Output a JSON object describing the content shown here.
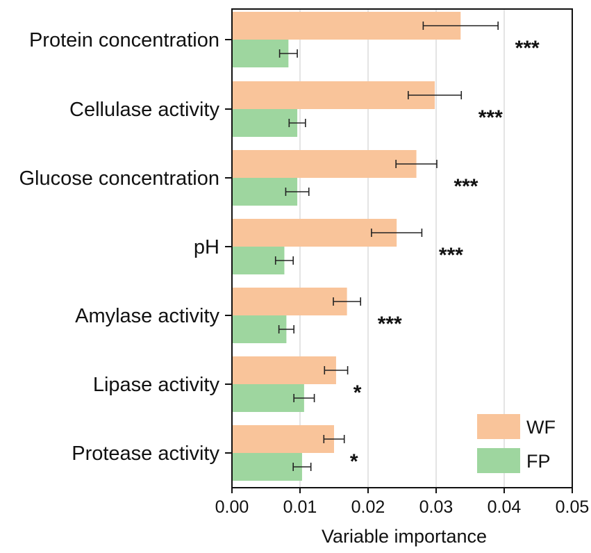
{
  "chart_data": {
    "type": "bar",
    "orientation": "horizontal",
    "title": "",
    "xlabel": "Variable importance",
    "ylabel": "",
    "xlim": [
      0,
      0.05
    ],
    "x_ticks": [
      "0.00",
      "0.01",
      "0.02",
      "0.03",
      "0.04",
      "0.05"
    ],
    "grid": true,
    "legend_position": "bottom-right",
    "categories": [
      "Protein concentration",
      "Cellulase activity",
      "Glucose concentration",
      "pH",
      "Amylase activity",
      "Lipase activity",
      "Protease activity"
    ],
    "series": [
      {
        "name": "WF",
        "color": "#f9c49a",
        "values": [
          0.0336,
          0.0298,
          0.0271,
          0.0242,
          0.0169,
          0.0153,
          0.015
        ],
        "errors": [
          0.0055,
          0.0039,
          0.003,
          0.0037,
          0.002,
          0.0017,
          0.0015
        ]
      },
      {
        "name": "FP",
        "color": "#9ed69f",
        "values": [
          0.0083,
          0.0096,
          0.0096,
          0.0077,
          0.008,
          0.0106,
          0.0103
        ],
        "errors": [
          0.0013,
          0.0012,
          0.0017,
          0.0013,
          0.0011,
          0.0015,
          0.0013
        ]
      }
    ],
    "significance": [
      "***",
      "***",
      "***",
      "***",
      "***",
      "*",
      "*"
    ]
  }
}
